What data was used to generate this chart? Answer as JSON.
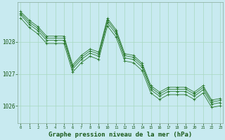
{
  "title": "Graphe pression niveau de la mer (hPa)",
  "hours": [
    0,
    1,
    2,
    3,
    4,
    5,
    6,
    7,
    8,
    9,
    10,
    11,
    12,
    13,
    14,
    15,
    16,
    17,
    18,
    19,
    20,
    21,
    22,
    23
  ],
  "line1": [
    1028.75,
    1028.45,
    1028.25,
    1027.95,
    1027.95,
    1027.95,
    1027.05,
    1027.35,
    1027.55,
    1027.45,
    1028.5,
    1028.15,
    1027.4,
    1027.35,
    1027.1,
    1026.4,
    1026.2,
    1026.35,
    1026.35,
    1026.35,
    1026.2,
    1026.4,
    1025.95,
    1026.0
  ],
  "line2": [
    1028.85,
    1028.55,
    1028.35,
    1028.05,
    1028.05,
    1028.05,
    1027.15,
    1027.45,
    1027.65,
    1027.55,
    1028.6,
    1028.25,
    1027.5,
    1027.45,
    1027.2,
    1026.5,
    1026.3,
    1026.45,
    1026.45,
    1026.45,
    1026.3,
    1026.5,
    1026.05,
    1026.1
  ],
  "line3": [
    1028.9,
    1028.62,
    1028.42,
    1028.12,
    1028.12,
    1028.12,
    1027.22,
    1027.52,
    1027.72,
    1027.62,
    1028.68,
    1028.32,
    1027.57,
    1027.52,
    1027.27,
    1026.57,
    1026.37,
    1026.52,
    1026.52,
    1026.52,
    1026.37,
    1026.57,
    1026.12,
    1026.17
  ],
  "line4": [
    1028.95,
    1028.68,
    1028.48,
    1028.18,
    1028.18,
    1028.18,
    1027.28,
    1027.58,
    1027.78,
    1027.68,
    1028.74,
    1028.38,
    1027.63,
    1027.58,
    1027.33,
    1026.63,
    1026.43,
    1026.58,
    1026.58,
    1026.58,
    1026.43,
    1026.63,
    1026.18,
    1026.23
  ],
  "bg_color": "#c8eaf0",
  "line_color": "#1a6e1a",
  "grid_color_v": "#a8d8c0",
  "grid_color_h": "#b8d8c8",
  "ylim": [
    1025.45,
    1029.25
  ],
  "yticks": [
    1026,
    1027,
    1028
  ],
  "text_color": "#1a5a1a",
  "xlabel_bottom_color": "#1a5a1a"
}
